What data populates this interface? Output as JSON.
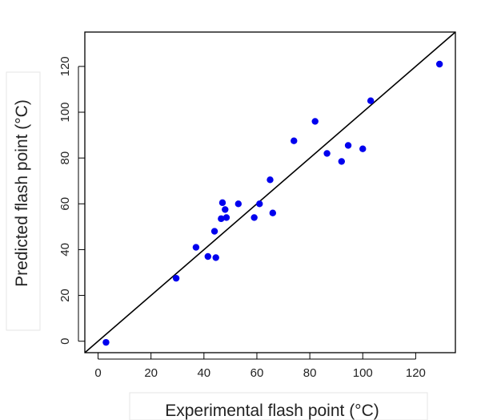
{
  "chart_data": {
    "type": "scatter",
    "title": "",
    "xlabel": "Experimental flash point (°C)",
    "ylabel": "Predicted flash point (°C)",
    "xlim": [
      -5,
      135
    ],
    "ylim": [
      -5,
      135
    ],
    "x_ticks": [
      "0",
      "20",
      "40",
      "60",
      "80",
      "100",
      "120"
    ],
    "y_ticks": [
      "0",
      "20",
      "40",
      "60",
      "80",
      "100",
      "120"
    ],
    "reference_line": "y = x",
    "grid": false,
    "point_color": "#0000ee",
    "line_color": "#000000",
    "points": [
      {
        "x": 3,
        "y": -0.5
      },
      {
        "x": 29.5,
        "y": 27.5
      },
      {
        "x": 37,
        "y": 41
      },
      {
        "x": 41.5,
        "y": 37
      },
      {
        "x": 44,
        "y": 48
      },
      {
        "x": 44.5,
        "y": 36.5
      },
      {
        "x": 46.5,
        "y": 53.5
      },
      {
        "x": 47,
        "y": 60.5
      },
      {
        "x": 48,
        "y": 57.5
      },
      {
        "x": 48.5,
        "y": 54
      },
      {
        "x": 53,
        "y": 60
      },
      {
        "x": 59,
        "y": 54
      },
      {
        "x": 61,
        "y": 60
      },
      {
        "x": 65,
        "y": 70.5
      },
      {
        "x": 66,
        "y": 56
      },
      {
        "x": 74,
        "y": 87.5
      },
      {
        "x": 82,
        "y": 96
      },
      {
        "x": 86.5,
        "y": 82
      },
      {
        "x": 92,
        "y": 78.5
      },
      {
        "x": 94.5,
        "y": 85.5
      },
      {
        "x": 100,
        "y": 84
      },
      {
        "x": 103,
        "y": 105
      },
      {
        "x": 129,
        "y": 121
      }
    ]
  }
}
